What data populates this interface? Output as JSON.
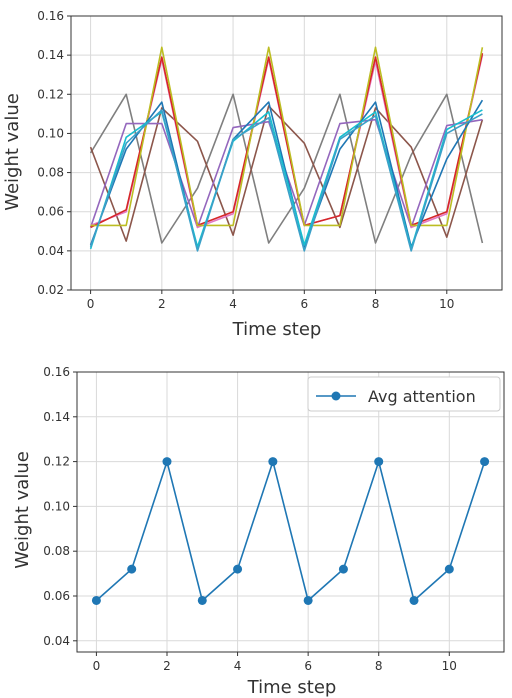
{
  "chart_data": [
    {
      "type": "line",
      "title": "",
      "xlabel": "Time step",
      "ylabel": "Weight value",
      "xlim": [
        -0.55,
        11.55
      ],
      "ylim": [
        0.02,
        0.16
      ],
      "xticks": [
        0,
        2,
        4,
        6,
        8,
        10
      ],
      "yticks": [
        0.02,
        0.04,
        0.06,
        0.08,
        0.1,
        0.12,
        0.14,
        0.16
      ],
      "ytick_labels": [
        "0.02",
        "0.04",
        "0.06",
        "0.08",
        "0.10",
        "0.12",
        "0.14",
        "0.16"
      ],
      "grid": true,
      "legend": null,
      "x": [
        0,
        1,
        2,
        3,
        4,
        5,
        6,
        7,
        8,
        9,
        10,
        11
      ],
      "series": [
        {
          "color": "#7f7f7f",
          "values": [
            0.09,
            0.12,
            0.044,
            0.072,
            0.12,
            0.044,
            0.072,
            0.12,
            0.044,
            0.089,
            0.12,
            0.044
          ]
        },
        {
          "color": "#8c564b",
          "values": [
            0.093,
            0.045,
            0.113,
            0.096,
            0.048,
            0.114,
            0.095,
            0.052,
            0.113,
            0.093,
            0.047,
            0.107
          ]
        },
        {
          "color": "#9467bd",
          "values": [
            0.052,
            0.105,
            0.105,
            0.052,
            0.103,
            0.106,
            0.053,
            0.105,
            0.107,
            0.052,
            0.104,
            0.107
          ]
        },
        {
          "color": "#e377c2",
          "values": [
            0.053,
            0.06,
            0.138,
            0.052,
            0.059,
            0.138,
            0.053,
            0.058,
            0.137,
            0.052,
            0.059,
            0.14
          ]
        },
        {
          "color": "#d62728",
          "values": [
            0.052,
            0.061,
            0.139,
            0.053,
            0.06,
            0.139,
            0.053,
            0.058,
            0.139,
            0.053,
            0.06,
            0.141
          ]
        },
        {
          "color": "#bcbd22",
          "values": [
            0.053,
            0.053,
            0.144,
            0.053,
            0.053,
            0.144,
            0.053,
            0.053,
            0.144,
            0.053,
            0.053,
            0.144
          ]
        },
        {
          "color": "#1f77b4",
          "values": [
            0.043,
            0.092,
            0.116,
            0.041,
            0.097,
            0.116,
            0.042,
            0.092,
            0.116,
            0.042,
            0.087,
            0.117
          ]
        },
        {
          "color": "#17becf",
          "values": [
            0.041,
            0.098,
            0.111,
            0.042,
            0.096,
            0.111,
            0.043,
            0.098,
            0.111,
            0.041,
            0.102,
            0.112
          ]
        },
        {
          "color": "#3ba0c8",
          "values": [
            0.042,
            0.095,
            0.112,
            0.04,
            0.097,
            0.108,
            0.04,
            0.097,
            0.109,
            0.04,
            0.1,
            0.11
          ]
        }
      ]
    },
    {
      "type": "line",
      "title": "",
      "xlabel": "Time step",
      "ylabel": "Weight value",
      "xlim": [
        -0.55,
        11.55
      ],
      "ylim": [
        0.035,
        0.16
      ],
      "xticks": [
        0,
        2,
        4,
        6,
        8,
        10
      ],
      "yticks": [
        0.04,
        0.06,
        0.08,
        0.1,
        0.12,
        0.14,
        0.16
      ],
      "ytick_labels": [
        "0.04",
        "0.06",
        "0.08",
        "0.10",
        "0.12",
        "0.14",
        "0.16"
      ],
      "grid": true,
      "legend": "top-right",
      "x": [
        0,
        1,
        2,
        3,
        4,
        5,
        6,
        7,
        8,
        9,
        10,
        11
      ],
      "series": [
        {
          "name": "Avg attention",
          "color": "#1f77b4",
          "marker": "circle",
          "values": [
            0.058,
            0.072,
            0.12,
            0.058,
            0.072,
            0.12,
            0.058,
            0.072,
            0.12,
            0.058,
            0.072,
            0.12
          ]
        }
      ]
    }
  ]
}
